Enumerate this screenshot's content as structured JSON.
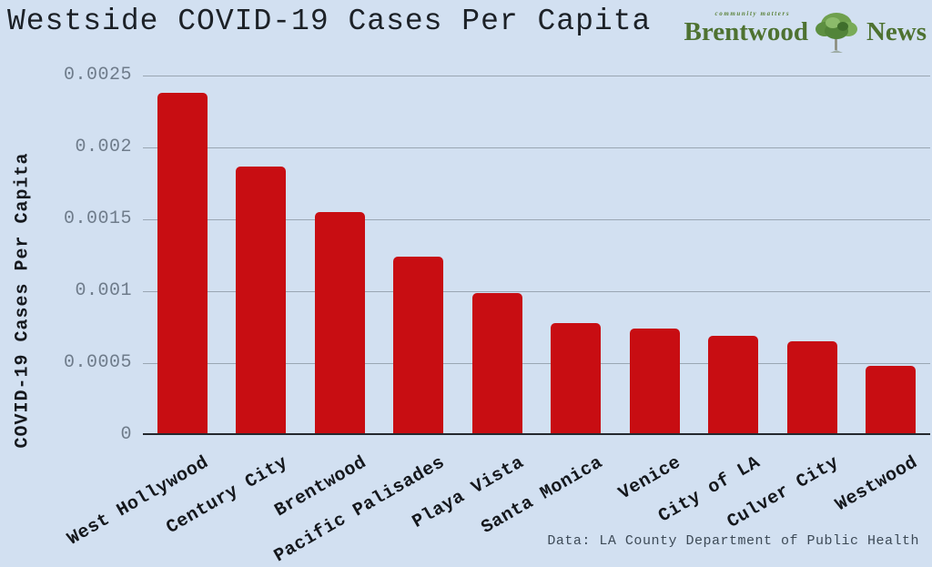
{
  "header": {
    "title": "Westside COVID-19 Cases Per Capita"
  },
  "logo": {
    "tagline": "community matters",
    "brand_left": "Brentwood",
    "brand_right": "News",
    "brand_color": "#4e7231"
  },
  "footer": {
    "source": "Data: LA County Department of Public Health"
  },
  "chart_data": {
    "type": "bar",
    "title": "Westside COVID-19 Cases Per Capita",
    "xlabel": "",
    "ylabel": "COVID-19 Cases Per Capita",
    "categories": [
      "West Hollywood",
      "Century City",
      "Brentwood",
      "Pacific Palisades",
      "Playa Vista",
      "Santa Monica",
      "Venice",
      "City of LA",
      "Culver City",
      "Westwood"
    ],
    "values": [
      0.00238,
      0.00187,
      0.00155,
      0.00124,
      0.00099,
      0.00078,
      0.00074,
      0.00069,
      0.00065,
      0.00048
    ],
    "ylim": [
      0,
      0.0025
    ],
    "yticks": [
      0,
      0.0005,
      0.001,
      0.0015,
      0.002,
      0.0025
    ],
    "ytick_labels": [
      "0",
      "0.0005",
      "0.001",
      "0.0015",
      "0.002",
      "0.0025"
    ],
    "grid": true,
    "legend": "none",
    "bar_color": "#c80d12",
    "background_color": "#d2e0f1",
    "gridline_color": "#9aa6b3"
  }
}
